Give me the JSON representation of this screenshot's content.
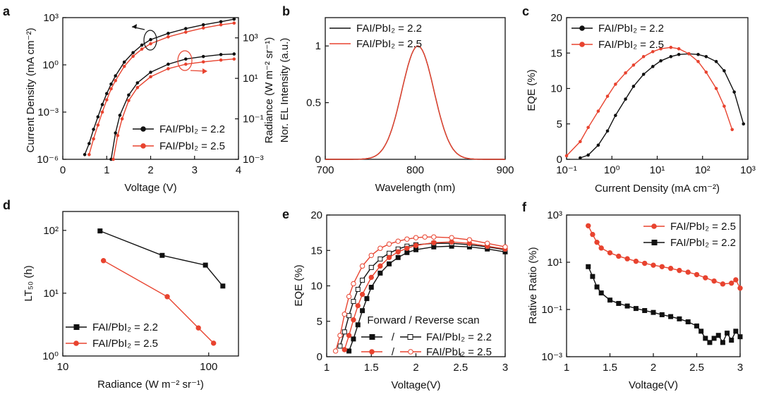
{
  "chart_data": [
    {
      "panel": "a",
      "type": "line",
      "xlabel": "Voltage (V)",
      "ylabel": "Current Density (mA cm⁻²)",
      "y2label": "Radiance (W m⁻² sr⁻¹)",
      "xlim": [
        0,
        4
      ],
      "xticks": [
        0,
        1,
        2,
        3,
        4
      ],
      "ylim": [
        1e-06,
        1000
      ],
      "yscale": "log",
      "yticks": [
        "10⁻⁶",
        "10⁻³",
        "10⁰",
        "10³"
      ],
      "y2lim": [
        0.001,
        10000
      ],
      "y2scale": "log",
      "y2ticks": [
        "10⁻³",
        "10⁻¹",
        "10¹",
        "10³"
      ],
      "legend_position": "bottom-right",
      "series": [
        {
          "name": "FAI/PbI₂ = 2.2",
          "axis": "left",
          "color": "#111111",
          "x": [
            0.5,
            0.6,
            0.7,
            0.8,
            0.9,
            1.0,
            1.1,
            1.2,
            1.4,
            1.6,
            1.8,
            2.0,
            2.4,
            2.8,
            3.2,
            3.6,
            3.9
          ],
          "y": [
            2e-06,
            1e-05,
            8e-05,
            0.0005,
            0.003,
            0.015,
            0.06,
            0.2,
            1.5,
            6,
            18,
            40,
            100,
            200,
            350,
            550,
            800
          ]
        },
        {
          "name": "FAI/PbI₂ = 2.5",
          "axis": "left",
          "color": "#e8432f",
          "x": [
            0.6,
            0.7,
            0.8,
            0.9,
            1.0,
            1.1,
            1.2,
            1.4,
            1.6,
            1.8,
            2.0,
            2.4,
            2.8,
            3.2,
            3.6,
            3.9
          ],
          "y": [
            2e-06,
            2e-05,
            0.00015,
            0.001,
            0.006,
            0.03,
            0.1,
            0.8,
            3.5,
            10,
            22,
            60,
            120,
            220,
            350,
            450
          ]
        },
        {
          "name": "FAI/PbI₂ = 2.2",
          "axis": "right",
          "color": "#111111",
          "x": [
            1.1,
            1.2,
            1.3,
            1.5,
            1.7,
            2.0,
            2.4,
            2.8,
            3.2,
            3.6,
            3.9
          ],
          "y": [
            0.001,
            0.02,
            0.15,
            1.5,
            6,
            20,
            50,
            90,
            120,
            150,
            160
          ]
        },
        {
          "name": "FAI/PbI₂ = 2.5",
          "axis": "right",
          "color": "#e8432f",
          "x": [
            1.15,
            1.25,
            1.35,
            1.5,
            1.7,
            2.0,
            2.4,
            2.8,
            3.2,
            3.6,
            3.9
          ],
          "y": [
            0.001,
            0.015,
            0.1,
            0.8,
            3.5,
            12,
            30,
            50,
            65,
            80,
            90
          ]
        }
      ]
    },
    {
      "panel": "b",
      "type": "line",
      "xlabel": "Wavelength (nm)",
      "ylabel": "Nor. EL Intensity (a.u.)",
      "xlim": [
        700,
        900
      ],
      "xticks": [
        700,
        800,
        900
      ],
      "ylim": [
        0,
        1.25
      ],
      "yticks": [
        0.0,
        0.5,
        1.0
      ],
      "legend_position": "top-left",
      "peak_nm": 803,
      "fwhm_nm": 42,
      "series": [
        {
          "name": "FAI/PbI₂ = 2.2",
          "color": "#111111"
        },
        {
          "name": "FAI/PbI₂ = 2.5",
          "color": "#e8432f"
        }
      ]
    },
    {
      "panel": "c",
      "type": "line",
      "xlabel": "Current Density (mA cm⁻²)",
      "ylabel": "EQE (%)",
      "xscale": "log",
      "xlim": [
        0.1,
        1000
      ],
      "xticks": [
        "10⁻¹",
        "10⁰",
        "10¹",
        "10²",
        "10³"
      ],
      "ylim": [
        0,
        20
      ],
      "yticks": [
        0,
        5,
        10,
        15,
        20
      ],
      "legend_position": "top-left",
      "series": [
        {
          "name": "FAI/PbI₂ = 2.2",
          "color": "#111111",
          "x": [
            0.2,
            0.3,
            0.5,
            0.8,
            1.2,
            2,
            3,
            5,
            8,
            12,
            20,
            30,
            50,
            80,
            120,
            200,
            300,
            500,
            800
          ],
          "y": [
            0.2,
            0.6,
            2.0,
            4.0,
            6.2,
            8.5,
            10.3,
            12.0,
            13.1,
            13.9,
            14.5,
            14.8,
            14.9,
            14.8,
            14.5,
            13.8,
            12.5,
            9.5,
            5.0
          ]
        },
        {
          "name": "FAI/PbI₂ = 2.5",
          "color": "#e8432f",
          "x": [
            0.1,
            0.2,
            0.3,
            0.5,
            0.8,
            1.2,
            2,
            3,
            5,
            8,
            12,
            20,
            30,
            50,
            80,
            120,
            200,
            300,
            450
          ],
          "y": [
            0.5,
            2.5,
            4.5,
            6.8,
            8.9,
            10.6,
            12.2,
            13.3,
            14.5,
            15.2,
            15.6,
            15.8,
            15.6,
            14.9,
            13.8,
            12.3,
            10.0,
            7.5,
            4.2
          ]
        }
      ]
    },
    {
      "panel": "d",
      "type": "line",
      "xlabel": "Radiance (W m⁻² sr⁻¹)",
      "ylabel": "LT₅₀ (h)",
      "xscale": "log",
      "xlim": [
        10,
        160
      ],
      "xticks": [
        10,
        100
      ],
      "yscale": "log",
      "ylim": [
        1,
        200
      ],
      "yticks": [
        "10⁰",
        "10¹",
        "10²"
      ],
      "legend_position": "bottom-left",
      "series": [
        {
          "name": "FAI/PbI₂ = 2.2",
          "color": "#111111",
          "x": [
            18,
            48,
            95,
            125
          ],
          "y": [
            98,
            40,
            28,
            13
          ]
        },
        {
          "name": "FAI/PbI₂ = 2.5",
          "color": "#e8432f",
          "x": [
            19,
            52,
            85,
            108
          ],
          "y": [
            33,
            8.8,
            2.8,
            1.6
          ]
        }
      ]
    },
    {
      "panel": "e",
      "type": "line",
      "xlabel": "Voltage(V)",
      "ylabel": "EQE (%)",
      "xlim": [
        1.0,
        3.0
      ],
      "xticks": [
        1.0,
        1.5,
        2.0,
        2.5,
        3.0
      ],
      "ylim": [
        0,
        20
      ],
      "yticks": [
        0,
        5,
        10,
        15,
        20
      ],
      "legend_title": "Forward / Reverse scan",
      "legend_position": "bottom-left",
      "series": [
        {
          "name": "FAI/PbI₂ = 2.2 forward",
          "color": "#111111",
          "filled": true,
          "x": [
            1.25,
            1.3,
            1.35,
            1.4,
            1.45,
            1.5,
            1.6,
            1.7,
            1.8,
            1.9,
            2.0,
            2.2,
            2.4,
            2.6,
            2.8,
            3.0
          ],
          "y": [
            0.8,
            2.5,
            4.5,
            6.5,
            8.2,
            9.8,
            11.8,
            13.1,
            14.0,
            14.7,
            15.1,
            15.5,
            15.6,
            15.5,
            15.2,
            14.8
          ]
        },
        {
          "name": "FAI/PbI₂ = 2.2 reverse",
          "color": "#111111",
          "filled": false,
          "x": [
            1.15,
            1.2,
            1.25,
            1.3,
            1.35,
            1.4,
            1.5,
            1.6,
            1.7,
            1.8,
            1.9,
            2.0,
            2.2,
            2.4,
            2.6,
            2.8,
            3.0
          ],
          "y": [
            1.5,
            3.5,
            5.8,
            7.8,
            9.5,
            10.8,
            12.6,
            13.8,
            14.6,
            15.2,
            15.6,
            15.8,
            16.0,
            16.0,
            15.8,
            15.5,
            15.1
          ]
        },
        {
          "name": "FAI/PbI₂ = 2.5 forward",
          "color": "#e8432f",
          "filled": true,
          "x": [
            1.2,
            1.25,
            1.3,
            1.35,
            1.4,
            1.5,
            1.6,
            1.7,
            1.8,
            1.9,
            2.0,
            2.2,
            2.4,
            2.6,
            2.8,
            3.0
          ],
          "y": [
            1.0,
            3.0,
            5.2,
            7.2,
            8.8,
            11.2,
            12.8,
            14.0,
            14.8,
            15.3,
            15.7,
            16.1,
            16.2,
            16.0,
            15.6,
            15.2
          ]
        },
        {
          "name": "FAI/PbI₂ = 2.5 reverse",
          "color": "#e8432f",
          "filled": false,
          "x": [
            1.1,
            1.15,
            1.2,
            1.25,
            1.3,
            1.4,
            1.5,
            1.6,
            1.7,
            1.8,
            1.9,
            2.0,
            2.1,
            2.2,
            2.4,
            2.6,
            2.8,
            3.0
          ],
          "y": [
            0.8,
            3.0,
            6.0,
            8.5,
            10.3,
            12.8,
            14.3,
            15.3,
            15.9,
            16.3,
            16.6,
            16.8,
            16.9,
            16.9,
            16.8,
            16.5,
            16.0,
            15.5
          ]
        }
      ]
    },
    {
      "panel": "f",
      "type": "line",
      "xlabel": "Voltage(V)",
      "ylabel": "Rative Ratio (%)",
      "xlim": [
        1.0,
        3.0
      ],
      "xticks": [
        1.0,
        1.5,
        2.0,
        2.5,
        3.0
      ],
      "yscale": "log",
      "ylim": [
        0.001,
        1000
      ],
      "yticks": [
        "10⁻³",
        "10⁻¹",
        "10¹",
        "10³"
      ],
      "legend_position": "top-right",
      "series": [
        {
          "name": "FAI/PbI₂ = 2.5",
          "color": "#e8432f",
          "x": [
            1.25,
            1.3,
            1.35,
            1.4,
            1.5,
            1.6,
            1.7,
            1.8,
            1.9,
            2.0,
            2.1,
            2.2,
            2.3,
            2.4,
            2.5,
            2.6,
            2.7,
            2.8,
            2.9,
            2.95,
            3.0
          ],
          "y": [
            350,
            150,
            70,
            40,
            25,
            18,
            14,
            11,
            9,
            7.5,
            6.5,
            5.5,
            4.5,
            3.8,
            3.0,
            2.2,
            1.6,
            1.2,
            1.3,
            1.8,
            0.8
          ]
        },
        {
          "name": "FAI/PbI₂ = 2.2",
          "color": "#111111",
          "x": [
            1.25,
            1.3,
            1.35,
            1.4,
            1.5,
            1.6,
            1.7,
            1.8,
            1.9,
            2.0,
            2.1,
            2.2,
            2.3,
            2.4,
            2.5,
            2.55,
            2.6,
            2.65,
            2.7,
            2.75,
            2.8,
            2.85,
            2.9,
            2.95,
            3.0
          ],
          "y": [
            6.5,
            2.5,
            0.9,
            0.5,
            0.25,
            0.18,
            0.14,
            0.11,
            0.09,
            0.075,
            0.06,
            0.05,
            0.04,
            0.03,
            0.02,
            0.012,
            0.006,
            0.004,
            0.006,
            0.008,
            0.004,
            0.01,
            0.005,
            0.012,
            0.007
          ]
        }
      ]
    }
  ]
}
